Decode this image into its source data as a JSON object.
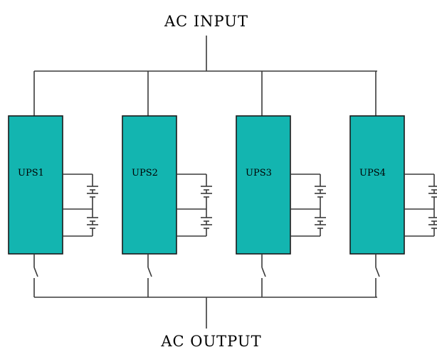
{
  "diagram": {
    "input_label": "AC INPUT",
    "output_label": "AC OUTPUT",
    "units": [
      {
        "label": "UPS1"
      },
      {
        "label": "UPS2"
      },
      {
        "label": "UPS3"
      },
      {
        "label": "UPS4"
      }
    ],
    "colors": {
      "ups_fill": "#13b5b0",
      "line": "#3a3a3a"
    }
  }
}
